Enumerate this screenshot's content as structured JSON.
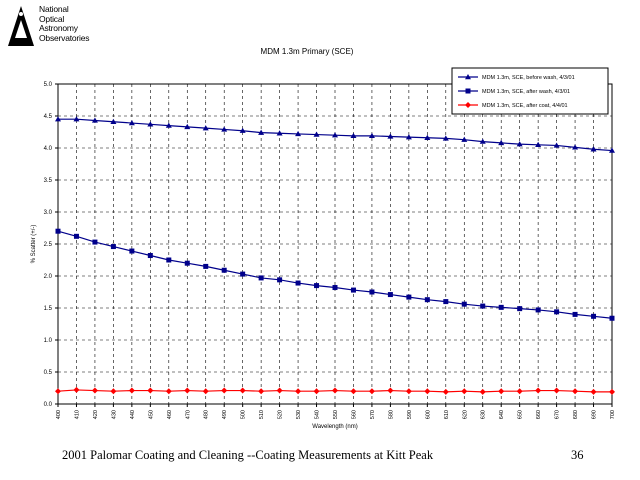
{
  "logo": {
    "lines": [
      "National",
      "Optical",
      "Astronomy",
      "Observatories"
    ]
  },
  "footer": {
    "caption": "2001 Palomar Coating and Cleaning --Coating Measurements at Kitt Peak",
    "page_number": "36"
  },
  "colors": {
    "before_wash": "#00008b",
    "after_wash": "#00008b",
    "after_coat": "#ff0000",
    "grid": "#000000"
  },
  "chart_data": {
    "type": "line",
    "title": "MDM 1.3m Primary (SCE)",
    "xlabel": "Wavelength (nm)",
    "ylabel": "% Scatter (+/-)",
    "xlim": [
      400,
      700
    ],
    "ylim": [
      0.0,
      5.0
    ],
    "x_ticks": [
      "400",
      "410",
      "420",
      "430",
      "440",
      "450",
      "460",
      "470",
      "480",
      "490",
      "500",
      "510",
      "520",
      "530",
      "540",
      "550",
      "560",
      "570",
      "580",
      "590",
      "600",
      "610",
      "620",
      "630",
      "640",
      "650",
      "660",
      "670",
      "680",
      "690",
      "700"
    ],
    "y_ticks": [
      "0.0",
      "0.5",
      "1.0",
      "1.5",
      "2.0",
      "2.5",
      "3.0",
      "3.5",
      "4.0",
      "4.5",
      "5.0"
    ],
    "grid": true,
    "legend_position": "top-right",
    "x": [
      400,
      410,
      420,
      430,
      440,
      450,
      460,
      470,
      480,
      490,
      500,
      510,
      520,
      530,
      540,
      550,
      560,
      570,
      580,
      590,
      600,
      610,
      620,
      630,
      640,
      650,
      660,
      670,
      680,
      690,
      700
    ],
    "series": [
      {
        "name": "MDM 1.3m, SCE, before wash, 4/3/01",
        "marker": "triangle",
        "values": [
          4.45,
          4.45,
          4.43,
          4.41,
          4.39,
          4.37,
          4.35,
          4.33,
          4.31,
          4.29,
          4.27,
          4.24,
          4.23,
          4.22,
          4.21,
          4.2,
          4.19,
          4.19,
          4.18,
          4.17,
          4.16,
          4.15,
          4.13,
          4.1,
          4.08,
          4.06,
          4.05,
          4.04,
          4.01,
          3.98,
          3.96
        ]
      },
      {
        "name": "MDM 1.3m, SCE, after wash, 4/3/01",
        "marker": "square",
        "values": [
          2.7,
          2.62,
          2.53,
          2.46,
          2.39,
          2.32,
          2.25,
          2.2,
          2.15,
          2.09,
          2.03,
          1.97,
          1.94,
          1.89,
          1.85,
          1.82,
          1.78,
          1.75,
          1.71,
          1.67,
          1.63,
          1.6,
          1.56,
          1.53,
          1.51,
          1.49,
          1.47,
          1.44,
          1.4,
          1.37,
          1.34
        ]
      },
      {
        "name": "MDM 1.3m, SCE, after coat, 4/4/01",
        "marker": "diamond",
        "values": [
          0.2,
          0.22,
          0.21,
          0.2,
          0.21,
          0.21,
          0.2,
          0.21,
          0.2,
          0.21,
          0.21,
          0.2,
          0.21,
          0.2,
          0.2,
          0.21,
          0.2,
          0.2,
          0.21,
          0.2,
          0.2,
          0.19,
          0.2,
          0.19,
          0.2,
          0.2,
          0.21,
          0.21,
          0.2,
          0.19,
          0.19
        ]
      }
    ]
  }
}
